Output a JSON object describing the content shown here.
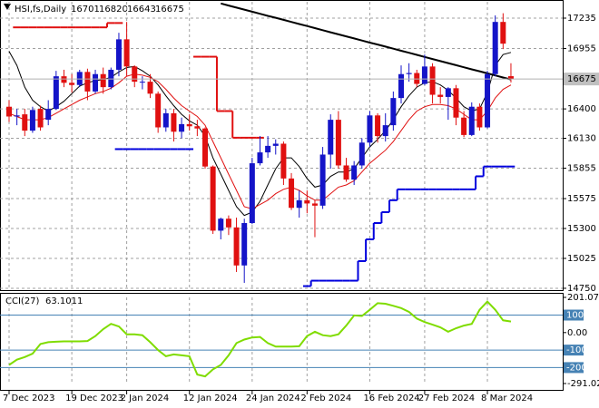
{
  "chart_data": [
    {
      "type": "candlestick",
      "title": "HSI,fs,Daily",
      "categories": [
        "7 Dec 2023",
        null,
        null,
        null,
        null,
        null,
        null,
        null,
        "19 Dec 2023",
        null,
        null,
        null,
        null,
        null,
        null,
        "2 Jan 2024",
        null,
        null,
        null,
        null,
        null,
        null,
        null,
        "12 Jan 2024",
        null,
        null,
        null,
        null,
        null,
        null,
        null,
        "24 Jan 2024",
        null,
        null,
        null,
        null,
        null,
        null,
        "2 Feb 2024",
        null,
        null,
        null,
        null,
        null,
        null,
        null,
        "16 Feb 2024",
        null,
        null,
        null,
        null,
        null,
        null,
        "27 Feb 2024",
        null,
        null,
        null,
        null,
        null,
        null,
        null,
        "8 Mar 2024",
        null,
        null,
        null
      ],
      "open": [
        16420,
        16330,
        16350,
        16200,
        16400,
        16300,
        16400,
        16700,
        16640,
        16620,
        16740,
        16560,
        16720,
        16600,
        16760,
        17040,
        16790,
        16650,
        16650,
        16540,
        16230,
        16360,
        16190,
        16260,
        16240,
        16220,
        15870,
        15280,
        15390,
        15310,
        14960,
        15350,
        15900,
        16000,
        16060,
        16080,
        15760,
        15490,
        15560,
        15530,
        15510,
        15980,
        16300,
        15880,
        15750,
        15880,
        16090,
        16340,
        16150,
        16250,
        16500,
        16720,
        16730,
        16630,
        16790,
        16530,
        16510,
        16590,
        16320,
        16160,
        16420,
        16230,
        16720,
        17200,
        16701
      ],
      "high": [
        16480,
        16400,
        16400,
        16420,
        16430,
        16480,
        16750,
        16760,
        16720,
        16760,
        16770,
        16760,
        16780,
        16780,
        17100,
        17200,
        16800,
        16700,
        16720,
        16560,
        16400,
        16400,
        16320,
        16350,
        16300,
        16230,
        15880,
        15400,
        15420,
        15400,
        15390,
        15950,
        16150,
        16150,
        16120,
        16100,
        15810,
        15650,
        15650,
        15560,
        16050,
        16350,
        16380,
        15950,
        15920,
        16130,
        16380,
        16360,
        16360,
        16560,
        16800,
        16820,
        16760,
        16900,
        16820,
        16600,
        16600,
        16620,
        16380,
        16460,
        16450,
        16750,
        17260,
        17280,
        16820
      ],
      "low": [
        16280,
        16250,
        16150,
        16180,
        16200,
        16250,
        16390,
        16600,
        16550,
        16600,
        16480,
        16540,
        16540,
        16580,
        16700,
        16700,
        16600,
        16580,
        16500,
        16180,
        16190,
        16100,
        16130,
        16200,
        16150,
        15850,
        15250,
        15200,
        15240,
        14900,
        14800,
        15340,
        15880,
        15950,
        15980,
        15700,
        15470,
        15400,
        15440,
        15220,
        15480,
        15850,
        15850,
        15730,
        15700,
        15850,
        16050,
        16090,
        16100,
        16200,
        16450,
        16650,
        16600,
        16620,
        16450,
        16450,
        16300,
        16250,
        16140,
        16150,
        16200,
        16220,
        16700,
        16950,
        16643
      ],
      "close": [
        16330,
        16340,
        16200,
        16390,
        16230,
        16400,
        16700,
        16640,
        16620,
        16740,
        16560,
        16720,
        16600,
        16760,
        17040,
        16790,
        16650,
        16650,
        16540,
        16230,
        16360,
        16190,
        16260,
        16240,
        16220,
        15870,
        15280,
        15390,
        15310,
        14960,
        15350,
        15900,
        16000,
        16060,
        16080,
        15760,
        15490,
        15560,
        15530,
        15510,
        15980,
        16300,
        15880,
        15750,
        15880,
        16090,
        16340,
        16150,
        16250,
        16500,
        16720,
        16730,
        16630,
        16790,
        16530,
        16510,
        16590,
        16320,
        16160,
        16420,
        16230,
        16720,
        17200,
        17000,
        16675
      ],
      "up_color": "#1414c8",
      "down_color": "#e01010",
      "overlays": [
        {
          "color": "#000000",
          "values": [
            16930,
            16800,
            16600,
            16480,
            16420,
            16380,
            16420,
            16470,
            16540,
            16610,
            16640,
            16660,
            16670,
            16690,
            16740,
            16780,
            16790,
            16750,
            16700,
            16620,
            16520,
            16430,
            16350,
            16290,
            16250,
            16150,
            15950,
            15800,
            15650,
            15500,
            15420,
            15450,
            15550,
            15700,
            15850,
            15950,
            15950,
            15870,
            15760,
            15680,
            15700,
            15780,
            15820,
            15820,
            15850,
            15950,
            16050,
            16120,
            16200,
            16300,
            16420,
            16520,
            16600,
            16640,
            16650,
            16620,
            16570,
            16500,
            16420,
            16380,
            16400,
            16550,
            16800,
            16900,
            16920
          ]
        },
        {
          "color": "#e01010",
          "values": [
            16360,
            16330,
            16300,
            16300,
            16300,
            16320,
            16360,
            16400,
            16440,
            16480,
            16510,
            16540,
            16560,
            16590,
            16640,
            16700,
            16720,
            16710,
            16690,
            16650,
            16580,
            16500,
            16430,
            16380,
            16330,
            16250,
            16100,
            15950,
            15800,
            15650,
            15500,
            15480,
            15520,
            15560,
            15620,
            15660,
            15680,
            15650,
            15600,
            15560,
            15560,
            15620,
            15680,
            15700,
            15740,
            15820,
            15900,
            15960,
            16020,
            16100,
            16200,
            16300,
            16380,
            16420,
            16440,
            16440,
            16430,
            16400,
            16350,
            16300,
            16300,
            16380,
            16500,
            16580,
            16620
          ]
        },
        {
          "color": "#e01010",
          "style": "step",
          "values": [
            null,
            17150,
            17150,
            17150,
            17150,
            17150,
            17150,
            17150,
            17150,
            17150,
            17150,
            17150,
            17150,
            17190,
            17190,
            null,
            null,
            null,
            null,
            null,
            null,
            null,
            null,
            null,
            16880,
            16880,
            16880,
            16380,
            16380,
            16135,
            16135,
            16135,
            16135,
            null,
            null,
            null,
            null,
            null,
            null,
            null,
            null,
            null,
            null,
            null,
            null,
            null,
            null,
            null,
            null,
            null,
            null,
            null,
            null,
            null,
            null,
            null,
            null,
            null,
            null,
            null,
            null,
            null,
            null,
            null,
            null
          ]
        },
        {
          "color": "#0000dd",
          "style": "step",
          "values": [
            null,
            null,
            null,
            null,
            null,
            null,
            null,
            null,
            null,
            null,
            null,
            null,
            null,
            null,
            16030,
            16030,
            16030,
            16030,
            16030,
            16030,
            16030,
            16030,
            16030,
            16030,
            null,
            null,
            null,
            null,
            null,
            null,
            null,
            null,
            null,
            null,
            null,
            null,
            null,
            null,
            14770,
            14820,
            14820,
            14820,
            14820,
            14820,
            14820,
            15000,
            15200,
            15350,
            15450,
            15560,
            15660,
            15660,
            15660,
            15660,
            15660,
            15660,
            15660,
            15660,
            15660,
            15660,
            15780,
            15870,
            15870,
            15870,
            15870
          ]
        },
        {
          "color": "#000000",
          "style": "trend",
          "values": [
            null,
            null,
            null,
            null,
            null,
            null,
            null,
            null,
            null,
            null,
            null,
            null,
            null,
            null,
            null,
            null,
            null,
            null,
            null,
            null,
            null,
            null,
            null,
            null,
            null,
            null,
            null,
            17370,
            17351,
            17332,
            17313,
            17294,
            17275,
            17256,
            17238,
            17219,
            17200,
            17181,
            17162,
            17143,
            17124,
            17105,
            17086,
            17067,
            17048,
            17029,
            17010,
            16992,
            16973,
            16954,
            16935,
            16916,
            16897,
            16878,
            16859,
            16840,
            16821,
            16802,
            16783,
            16764,
            16746,
            16727,
            16708,
            16689,
            16670
          ]
        }
      ],
      "ylim": [
        14733,
        17385
      ],
      "yticks": [
        17235,
        16955,
        16400,
        16130,
        15855,
        15575,
        15300,
        15025,
        14750
      ],
      "grid": true
    },
    {
      "type": "line",
      "title": "CCI(27)",
      "color": "#7fdc00",
      "values": [
        -185,
        -155,
        -140,
        -120,
        -65,
        -55,
        -52,
        -50,
        -50,
        -50,
        -48,
        -20,
        20,
        50,
        35,
        -10,
        -10,
        -15,
        -55,
        -100,
        -135,
        -125,
        -130,
        -135,
        -240,
        -250,
        -210,
        -185,
        -130,
        -60,
        -40,
        -28,
        -25,
        -60,
        -80,
        -80,
        -80,
        -78,
        -20,
        5,
        -15,
        -20,
        -10,
        40,
        98,
        95,
        130,
        168,
        165,
        153,
        140,
        118,
        80,
        60,
        45,
        30,
        5,
        25,
        40,
        50,
        130,
        177,
        130,
        70,
        63.1011
      ],
      "ylim": [
        -291.0274,
        201.0718
      ],
      "yticks": [
        201.0718,
        {
          "value": 0,
          "label": "0.00"
        },
        -291.0274
      ],
      "levels": [
        100,
        -100,
        -200
      ],
      "level_color": "#4682b4"
    }
  ]
}
